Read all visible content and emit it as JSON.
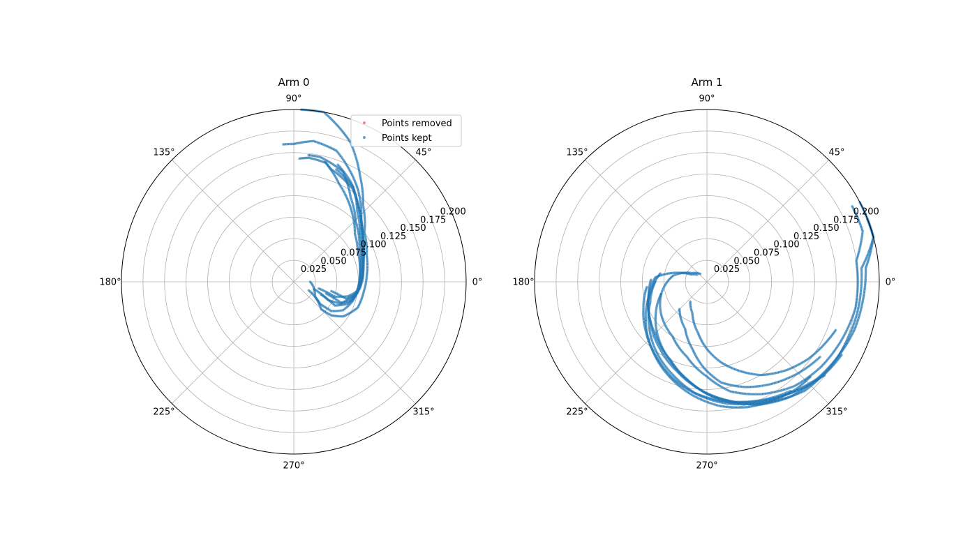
{
  "chart_data": [
    {
      "type": "scatter",
      "polar": true,
      "title": "Arm 0",
      "theta_tick_labels": [
        "0°",
        "45°",
        "90°",
        "135°",
        "180°",
        "225°",
        "270°",
        "315°"
      ],
      "r_tick_values": [
        0.025,
        0.05,
        0.075,
        0.1,
        0.125,
        0.15,
        0.175,
        0.2
      ],
      "r_tick_labels": [
        "0.025",
        "0.050",
        "0.075",
        "0.100",
        "0.125",
        "0.150",
        "0.175",
        "0.200"
      ],
      "r_label_angle_deg": 22.5,
      "rlim": [
        0,
        0.2
      ],
      "grid": true,
      "legend": {
        "location": "upper right",
        "entries": [
          {
            "label": "Points removed",
            "color": "#ff4d4d"
          },
          {
            "label": "Points kept",
            "color": "#1f77b4"
          }
        ]
      },
      "series": [
        {
          "name": "Points kept",
          "color": "#1f77b4",
          "tracks": [
            [
              [
                0.019,
                0
              ],
              [
                0.03,
                -35
              ],
              [
                0.045,
                -45
              ],
              [
                0.058,
                -42
              ],
              [
                0.07,
                -35
              ],
              [
                0.08,
                -22
              ],
              [
                0.082,
                -8
              ],
              [
                0.085,
                5
              ],
              [
                0.09,
                20
              ],
              [
                0.1,
                35
              ],
              [
                0.12,
                48
              ],
              [
                0.145,
                58
              ],
              [
                0.175,
                68
              ],
              [
                0.2,
                80
              ],
              [
                0.2,
                85
              ],
              [
                0.2,
                88
              ]
            ],
            [
              [
                0.03,
                -15
              ],
              [
                0.05,
                -20
              ],
              [
                0.065,
                -15
              ],
              [
                0.075,
                -8
              ],
              [
                0.08,
                5
              ],
              [
                0.085,
                18
              ],
              [
                0.095,
                32
              ],
              [
                0.105,
                42
              ],
              [
                0.13,
                55
              ],
              [
                0.16,
                72
              ],
              [
                0.165,
                82
              ],
              [
                0.16,
                90
              ],
              [
                0.16,
                95
              ]
            ],
            [
              [
                0.025,
                -20
              ],
              [
                0.045,
                -28
              ],
              [
                0.06,
                -25
              ],
              [
                0.07,
                -18
              ],
              [
                0.075,
                -5
              ],
              [
                0.078,
                10
              ],
              [
                0.082,
                25
              ],
              [
                0.09,
                38
              ],
              [
                0.105,
                50
              ],
              [
                0.125,
                65
              ],
              [
                0.143,
                75
              ],
              [
                0.145,
                83
              ],
              [
                0.143,
                88
              ]
            ],
            [
              [
                0.035,
                -25
              ],
              [
                0.055,
                -30
              ],
              [
                0.068,
                -22
              ],
              [
                0.074,
                -12
              ],
              [
                0.076,
                0
              ],
              [
                0.08,
                15
              ],
              [
                0.088,
                30
              ],
              [
                0.1,
                44
              ],
              [
                0.118,
                56
              ],
              [
                0.14,
                66
              ],
              [
                0.148,
                78
              ],
              [
                0.148,
                84
              ]
            ],
            [
              [
                0.02,
                -30
              ],
              [
                0.04,
                -40
              ],
              [
                0.055,
                -38
              ],
              [
                0.066,
                -30
              ],
              [
                0.072,
                -18
              ],
              [
                0.076,
                -5
              ],
              [
                0.078,
                8
              ],
              [
                0.085,
                22
              ],
              [
                0.095,
                36
              ],
              [
                0.11,
                48
              ],
              [
                0.13,
                58
              ],
              [
                0.14,
                70
              ]
            ],
            [
              [
                0.04,
                -20
              ],
              [
                0.06,
                -24
              ],
              [
                0.07,
                -15
              ],
              [
                0.077,
                -5
              ],
              [
                0.08,
                8
              ],
              [
                0.087,
                22
              ],
              [
                0.097,
                35
              ],
              [
                0.112,
                47
              ],
              [
                0.128,
                58
              ],
              [
                0.138,
                72
              ],
              [
                0.145,
                76
              ]
            ],
            [
              [
                0.045,
                -14
              ],
              [
                0.064,
                -18
              ],
              [
                0.075,
                -10
              ],
              [
                0.08,
                2
              ],
              [
                0.083,
                14
              ],
              [
                0.09,
                27
              ],
              [
                0.1,
                38
              ],
              [
                0.116,
                50
              ],
              [
                0.133,
                60
              ],
              [
                0.146,
                70
              ]
            ]
          ]
        }
      ]
    },
    {
      "type": "scatter",
      "polar": true,
      "title": "Arm 1",
      "theta_tick_labels": [
        "0°",
        "45°",
        "90°",
        "135°",
        "180°",
        "225°",
        "270°",
        "315°"
      ],
      "r_tick_values": [
        0.025,
        0.05,
        0.075,
        0.1,
        0.125,
        0.15,
        0.175,
        0.2
      ],
      "r_tick_labels": [
        "0.025",
        "0.050",
        "0.075",
        "0.100",
        "0.125",
        "0.150",
        "0.175",
        "0.200"
      ],
      "r_label_angle_deg": 22.5,
      "rlim": [
        0,
        0.2
      ],
      "grid": true,
      "series": [
        {
          "name": "Points kept",
          "color": "#1f77b4",
          "tracks": [
            [
              [
                0.014,
                144
              ],
              [
                0.02,
                155
              ],
              [
                0.04,
                165
              ],
              [
                0.06,
                175
              ],
              [
                0.068,
                190
              ],
              [
                0.075,
                205
              ],
              [
                0.085,
                225
              ],
              [
                0.1,
                245
              ],
              [
                0.12,
                262
              ],
              [
                0.14,
                278
              ],
              [
                0.155,
                295
              ],
              [
                0.17,
                312
              ],
              [
                0.175,
                330
              ],
              [
                0.178,
                348
              ],
              [
                0.18,
                5
              ],
              [
                0.2,
                15
              ],
              [
                0.2,
                22
              ],
              [
                0.2,
                28
              ]
            ],
            [
              [
                0.012,
                130
              ],
              [
                0.02,
                150
              ],
              [
                0.04,
                170
              ],
              [
                0.055,
                195
              ],
              [
                0.065,
                215
              ],
              [
                0.075,
                238
              ],
              [
                0.09,
                255
              ],
              [
                0.11,
                270
              ],
              [
                0.13,
                282
              ],
              [
                0.145,
                296
              ],
              [
                0.158,
                310
              ],
              [
                0.165,
                323
              ],
              [
                0.17,
                336
              ],
              [
                0.175,
                350
              ],
              [
                0.175,
                8
              ],
              [
                0.19,
                18
              ],
              [
                0.19,
                28
              ]
            ],
            [
              [
                0.065,
                178
              ],
              [
                0.07,
                195
              ],
              [
                0.08,
                215
              ],
              [
                0.095,
                235
              ],
              [
                0.11,
                252
              ],
              [
                0.125,
                266
              ],
              [
                0.14,
                280
              ],
              [
                0.155,
                293
              ],
              [
                0.165,
                306
              ],
              [
                0.17,
                318
              ],
              [
                0.175,
                330
              ],
              [
                0.18,
                342
              ],
              [
                0.182,
                352
              ],
              [
                0.185,
                5
              ],
              [
                0.2,
                15
              ],
              [
                0.2,
                22
              ]
            ],
            [
              [
                0.06,
                180
              ],
              [
                0.07,
                200
              ],
              [
                0.085,
                218
              ],
              [
                0.1,
                234
              ],
              [
                0.115,
                250
              ],
              [
                0.13,
                264
              ],
              [
                0.14,
                278
              ],
              [
                0.15,
                292
              ],
              [
                0.16,
                305
              ],
              [
                0.17,
                316
              ],
              [
                0.175,
                325
              ],
              [
                0.178,
                332
              ]
            ],
            [
              [
                0.07,
                185
              ],
              [
                0.08,
                203
              ],
              [
                0.092,
                220
              ],
              [
                0.105,
                236
              ],
              [
                0.12,
                252
              ],
              [
                0.132,
                266
              ],
              [
                0.143,
                279
              ],
              [
                0.152,
                292
              ],
              [
                0.16,
                305
              ],
              [
                0.168,
                316
              ],
              [
                0.175,
                322
              ]
            ],
            [
              [
                0.055,
                170
              ],
              [
                0.066,
                190
              ],
              [
                0.082,
                210
              ],
              [
                0.1,
                230
              ],
              [
                0.118,
                248
              ],
              [
                0.133,
                263
              ],
              [
                0.145,
                276
              ],
              [
                0.153,
                288
              ],
              [
                0.158,
                300
              ],
              [
                0.162,
                310
              ],
              [
                0.163,
                318
              ]
            ],
            [
              [
                0.03,
                230
              ],
              [
                0.04,
                245
              ],
              [
                0.06,
                260
              ],
              [
                0.078,
                270
              ],
              [
                0.095,
                280
              ],
              [
                0.11,
                290
              ],
              [
                0.125,
                300
              ],
              [
                0.138,
                312
              ],
              [
                0.148,
                323
              ],
              [
                0.155,
                333
              ],
              [
                0.16,
                340
              ]
            ],
            [
              [
                0.045,
                225
              ],
              [
                0.06,
                245
              ],
              [
                0.08,
                258
              ],
              [
                0.1,
                268
              ],
              [
                0.118,
                278
              ],
              [
                0.13,
                290
              ],
              [
                0.14,
                302
              ],
              [
                0.15,
                315
              ],
              [
                0.158,
                327
              ]
            ],
            [
              [
                0.055,
                195
              ],
              [
                0.07,
                212
              ],
              [
                0.085,
                228
              ],
              [
                0.1,
                244
              ],
              [
                0.115,
                258
              ],
              [
                0.13,
                270
              ],
              [
                0.143,
                283
              ],
              [
                0.152,
                296
              ],
              [
                0.16,
                308
              ]
            ]
          ]
        }
      ]
    }
  ]
}
